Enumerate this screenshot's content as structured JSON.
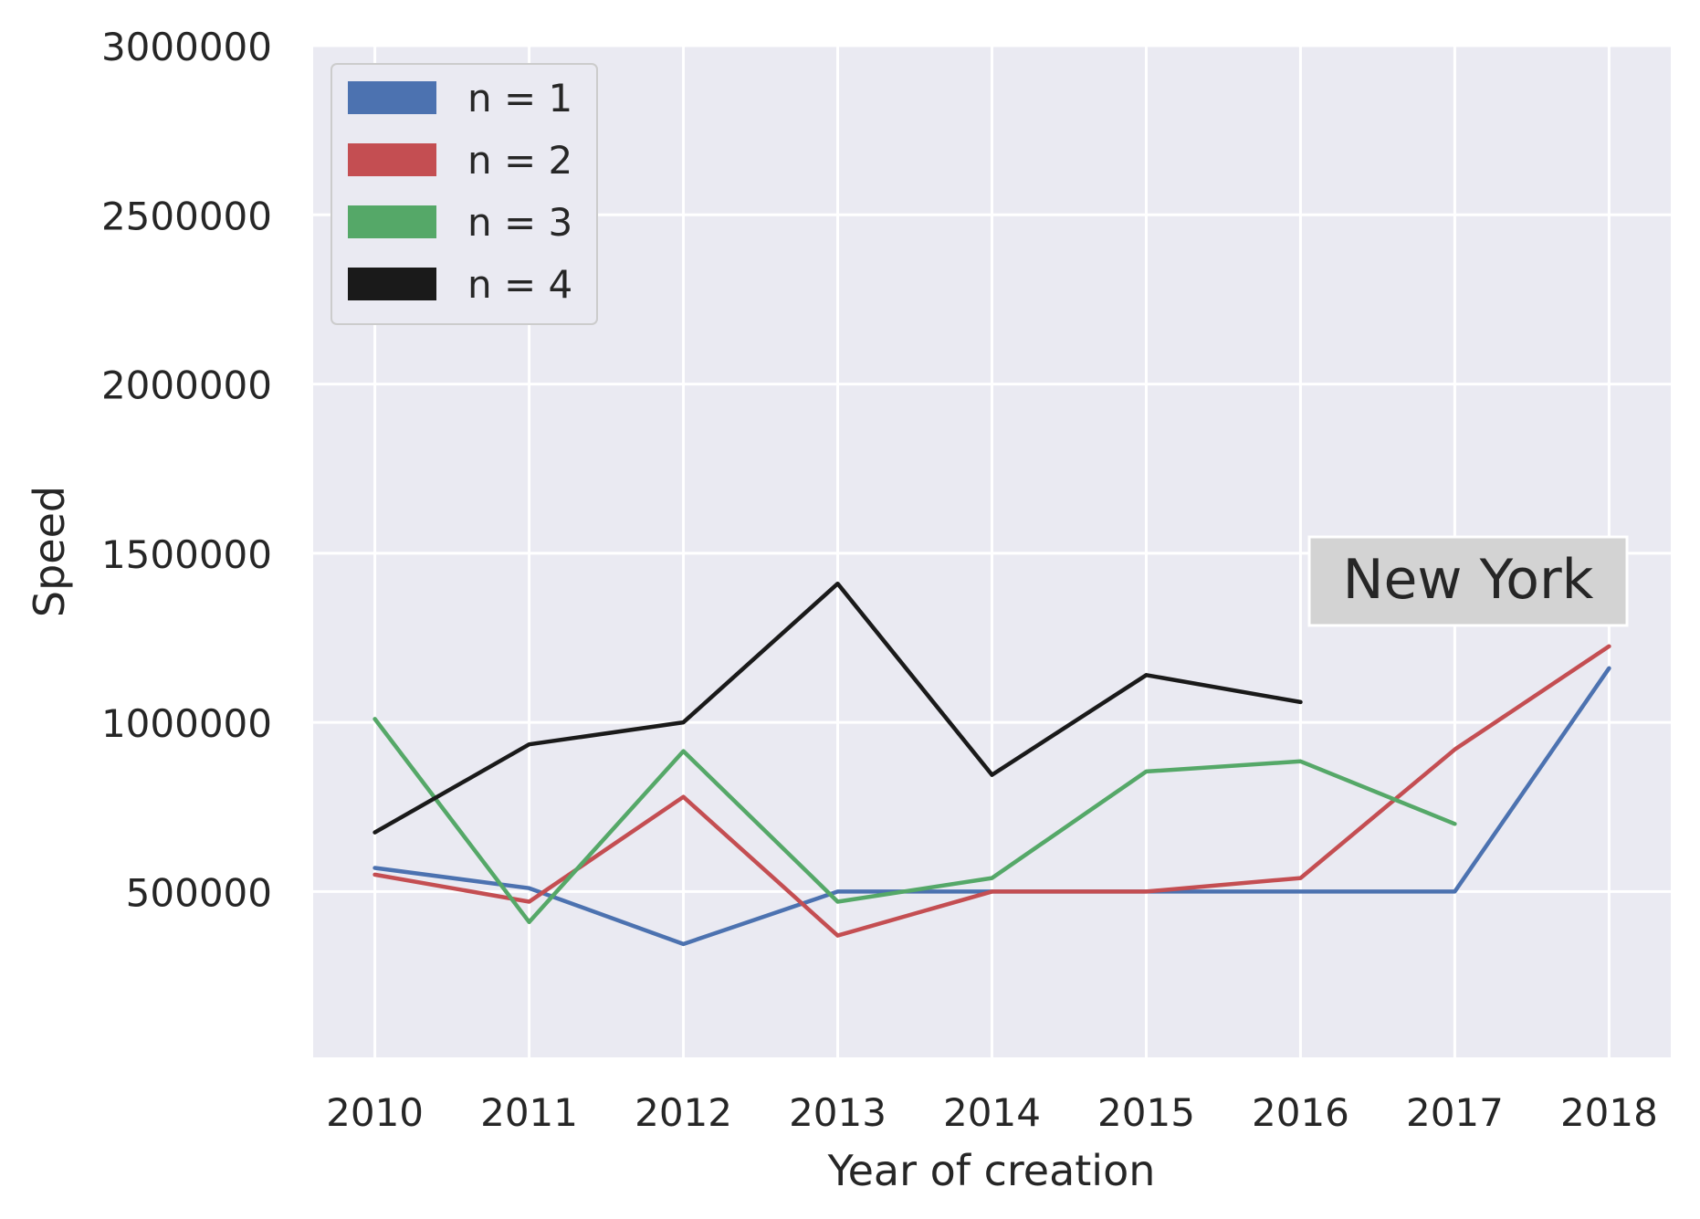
{
  "chart_data": {
    "type": "line",
    "title": "",
    "xlabel": "Year of creation",
    "ylabel": "Speed",
    "x": [
      2010,
      2011,
      2012,
      2013,
      2014,
      2015,
      2016,
      2017,
      2018
    ],
    "x_ticks": [
      "2010",
      "2011",
      "2012",
      "2013",
      "2014",
      "2015",
      "2016",
      "2017",
      "2018"
    ],
    "y_ticks": [
      "500000",
      "1000000",
      "1500000",
      "2000000",
      "2500000",
      "3000000"
    ],
    "y_tick_values": [
      500000,
      1000000,
      1500000,
      2000000,
      2500000,
      3000000
    ],
    "ylim": [
      10000,
      3000000
    ],
    "xlim": [
      2009.6,
      2018.4
    ],
    "grid": true,
    "background_color": "#eaeaf2",
    "grid_color": "#ffffff",
    "legend_position": "top-left",
    "annotation": {
      "text": "New York",
      "position": "right",
      "box_color": "#d3d3d3"
    },
    "series": [
      {
        "name": "n = 1",
        "color": "#4c72b0",
        "values": [
          570000,
          510000,
          345000,
          500000,
          500000,
          500000,
          500000,
          500000,
          1160000
        ]
      },
      {
        "name": "n = 2",
        "color": "#c44e52",
        "values": [
          550000,
          470000,
          780000,
          370000,
          500000,
          500000,
          540000,
          920000,
          1225000
        ]
      },
      {
        "name": "n = 3",
        "color": "#55a868",
        "values": [
          1010000,
          410000,
          915000,
          470000,
          540000,
          855000,
          885000,
          700000,
          null
        ]
      },
      {
        "name": "n = 4",
        "color": "#1a1a1a",
        "values": [
          675000,
          935000,
          1000000,
          1410000,
          845000,
          1140000,
          1060000,
          null,
          null
        ]
      }
    ]
  }
}
